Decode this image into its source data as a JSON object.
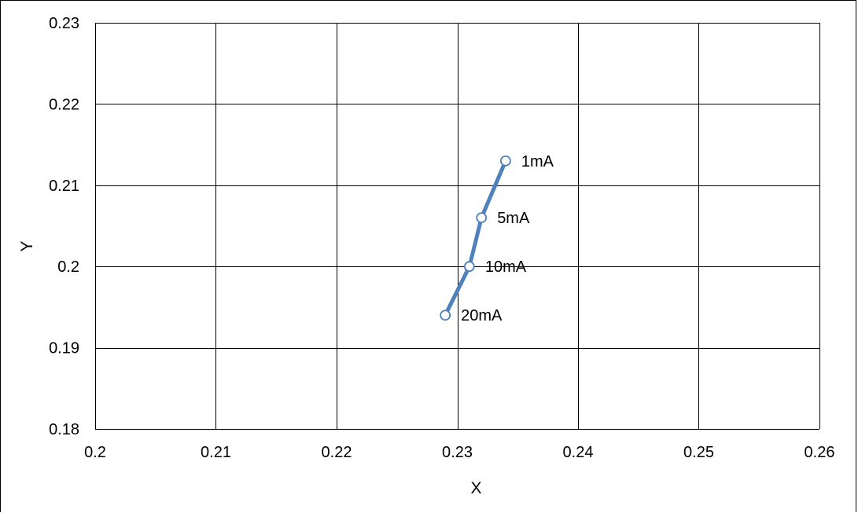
{
  "chart_data": {
    "type": "scatter",
    "title": "",
    "xlabel": "X",
    "ylabel": "Y",
    "xlim": [
      0.2,
      0.26
    ],
    "ylim": [
      0.18,
      0.23
    ],
    "x_ticks": [
      0.2,
      0.21,
      0.22,
      0.23,
      0.24,
      0.25,
      0.26
    ],
    "x_tick_labels": [
      "0.2",
      "0.21",
      "0.22",
      "0.23",
      "0.24",
      "0.25",
      "0.26"
    ],
    "y_ticks": [
      0.18,
      0.19,
      0.2,
      0.21,
      0.22,
      0.23
    ],
    "y_tick_labels": [
      "0.18",
      "0.19",
      "0.2",
      "0.21",
      "0.22",
      "0.23"
    ],
    "grid": true,
    "legend": "none",
    "series": [
      {
        "points": [
          {
            "x": 0.234,
            "y": 0.213,
            "label": "1mA"
          },
          {
            "x": 0.232,
            "y": 0.206,
            "label": "5mA"
          },
          {
            "x": 0.231,
            "y": 0.2,
            "label": "10mA"
          },
          {
            "x": 0.229,
            "y": 0.194,
            "label": "20mA"
          }
        ],
        "line_color": "#4F81BD",
        "marker_fill": "#ffffff",
        "marker_stroke": "#4F81BD",
        "connected": true
      }
    ]
  }
}
